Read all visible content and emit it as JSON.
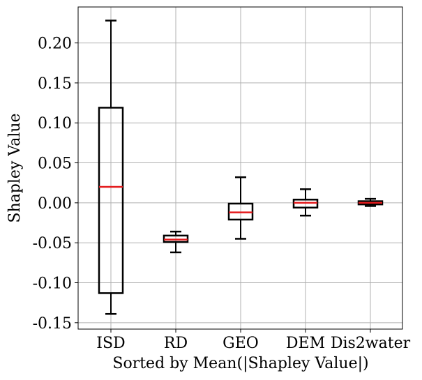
{
  "chart_data": {
    "type": "box",
    "xlabel": "Sorted by Mean(|Shapley Value|)",
    "ylabel": "Shapley Value",
    "ylim": [
      -0.158,
      0.245
    ],
    "yticks": [
      0.2,
      0.15,
      0.1,
      0.05,
      0.0,
      -0.05,
      -0.1,
      -0.15
    ],
    "ytick_labels": [
      "0.20",
      "0.15",
      "0.10",
      "0.05",
      "0.00",
      "-0.05",
      "-0.10",
      "-0.15"
    ],
    "grid": true,
    "categories": [
      "ISD",
      "RD",
      "GEO",
      "DEM",
      "Dis2water"
    ],
    "boxes": [
      {
        "whisker_low": -0.139,
        "q1": -0.113,
        "median": 0.02,
        "q3": 0.119,
        "whisker_high": 0.228
      },
      {
        "whisker_low": -0.062,
        "q1": -0.049,
        "median": -0.046,
        "q3": -0.041,
        "whisker_high": -0.036
      },
      {
        "whisker_low": -0.045,
        "q1": -0.021,
        "median": -0.012,
        "q3": -0.001,
        "whisker_high": 0.032
      },
      {
        "whisker_low": -0.016,
        "q1": -0.006,
        "median": 0.0,
        "q3": 0.004,
        "whisker_high": 0.017
      },
      {
        "whisker_low": -0.004,
        "q1": -0.002,
        "median": 0.0,
        "q3": 0.002,
        "whisker_high": 0.005
      }
    ],
    "colors": {
      "box": "#000000",
      "median": "#e41a1c",
      "grid": "#b0b0b0"
    }
  }
}
